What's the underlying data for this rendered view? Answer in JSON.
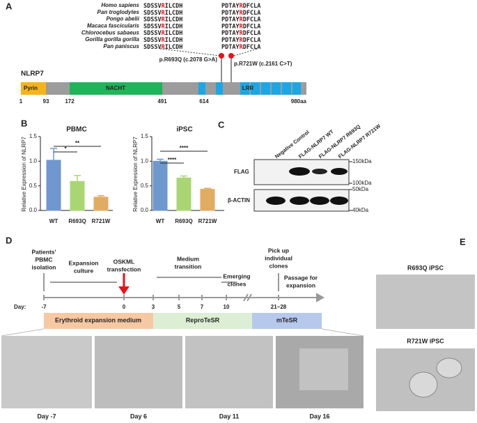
{
  "panel_labels": [
    "A",
    "B",
    "C",
    "D",
    "E"
  ],
  "alignment": {
    "rows": [
      {
        "species": "Homo sapiens",
        "seq1": [
          "SDSSV",
          "R",
          "ILCDH"
        ],
        "seq2": [
          "PDTAY",
          "R",
          "DFCLA"
        ]
      },
      {
        "species": "Pan troglodytes",
        "seq1": [
          "SDSSV",
          "R",
          "ILCDH"
        ],
        "seq2": [
          "PDTAY",
          "R",
          "DFCLA"
        ]
      },
      {
        "species": "Pongo abelii",
        "seq1": [
          "SDSSV",
          "R",
          "ILCDH"
        ],
        "seq2": [
          "PDTAY",
          "R",
          "DFCLA"
        ]
      },
      {
        "species": "Macaca fascicularis",
        "seq1": [
          "SDSSV",
          "R",
          "ILCDH"
        ],
        "seq2": [
          "PDTAY",
          "R",
          "DFCLA"
        ]
      },
      {
        "species": "Chlorocebus sabaeus",
        "seq1": [
          "SDSSV",
          "R",
          "ILCDH"
        ],
        "seq2": [
          "PDTAY",
          "R",
          "DFCLA"
        ]
      },
      {
        "species": "Gorilla gorilla gorilla",
        "seq1": [
          "SDSSV",
          "R",
          "ILCDH"
        ],
        "seq2": [
          "PDTAY",
          "R",
          "DFCLA"
        ]
      },
      {
        "species": "Pan paniscus",
        "seq1": [
          "SDSSV",
          "R",
          "ILCDH"
        ],
        "seq2": [
          "PDTAY",
          "R",
          "DFCLA"
        ]
      }
    ],
    "mutations": [
      "p.R693Q (c.2078 G>A)",
      "p.R721W (c.2161 C>T)"
    ]
  },
  "protein": {
    "name": "NLRP7",
    "domains": [
      "Pyrin",
      "NACHT",
      "LRR"
    ],
    "positions": [
      "1",
      "93",
      "172",
      "491",
      "614",
      "980aa"
    ]
  },
  "chart_data": [
    {
      "type": "bar",
      "title": "PBMC",
      "y_label": "Relative Expression of NLRP7",
      "categories": [
        "WT",
        "R693Q",
        "R721W"
      ],
      "values": [
        1.02,
        0.59,
        0.27
      ],
      "errors": [
        0.24,
        0.12,
        0.03
      ],
      "colors": [
        "#6f98cf",
        "#a9d672",
        "#e2ab62"
      ],
      "ylim": [
        0,
        1.5
      ],
      "yticks": [
        {
          "value": 0,
          "label": "0.0"
        },
        {
          "value": 0.5,
          "label": "0.5"
        },
        {
          "value": 1,
          "label": "1.0"
        },
        {
          "value": 1.5,
          "label": "1.5"
        }
      ],
      "significance": [
        "*",
        "**"
      ]
    },
    {
      "type": "bar",
      "title": "iPSC",
      "y_label": "Relative Expression of NLRP7",
      "categories": [
        "WT",
        "R693Q",
        "R721W"
      ],
      "values": [
        1.0,
        0.66,
        0.43
      ],
      "errors": [
        0.04,
        0.04,
        0.02
      ],
      "colors": [
        "#6f98cf",
        "#a9d672",
        "#e2ab62"
      ],
      "ylim": [
        0,
        1.5
      ],
      "yticks": [
        {
          "value": 0,
          "label": "0.0"
        },
        {
          "value": 0.5,
          "label": "0.5"
        },
        {
          "value": 1,
          "label": "1.0"
        },
        {
          "value": 1.5,
          "label": "1.5"
        }
      ],
      "significance": [
        "****",
        "****"
      ]
    }
  ],
  "western_blot": {
    "lanes": [
      "Negative Control",
      "FLAG-NLRP7 WT",
      "FLAG-NLRP7 R693Q",
      "FLAG-NLRP7 R721W"
    ],
    "rows": [
      "FLAG",
      "β-ACTIN"
    ],
    "markers": [
      "150kDa",
      "100kDa",
      "50kDa",
      "40kDa"
    ]
  },
  "timeline": {
    "events": [
      [
        "Patients'",
        "PBMC",
        "isolation"
      ],
      [
        "Expansion",
        "culture"
      ],
      [
        "OSKML",
        "transfection"
      ],
      [
        "Medium",
        "transition"
      ],
      [
        "Emerging",
        "clones"
      ],
      [
        "Pick up",
        "individual",
        "clones"
      ],
      [
        "Passage for",
        "expansion"
      ]
    ],
    "day_label": "Day:",
    "days": [
      "-7",
      "0",
      "3",
      "5",
      "7",
      "10",
      "21~28"
    ],
    "media": [
      "Erythroid expansion medium",
      "ReproTeSR",
      "mTeSR"
    ]
  },
  "micrographs": [
    "Day -7",
    "Day 6",
    "Day 11",
    "Day 16"
  ],
  "panel_e": [
    "R693Q iPSC",
    "R721W iPSC"
  ]
}
